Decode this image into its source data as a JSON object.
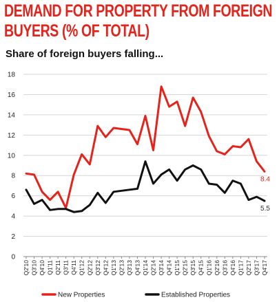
{
  "header": {
    "title_line1": "DEMAND FOR PROPERTY FROM FOREIGN",
    "title_line2": "BUYERS (% OF TOTAL)",
    "subtitle": "Share of foreign buyers falling..."
  },
  "chart_data": {
    "type": "line",
    "title": "DEMAND FOR PROPERTY FROM FOREIGN BUYERS (% OF TOTAL)",
    "subtitle": "Share of foreign buyers falling...",
    "xlabel": "",
    "ylabel": "",
    "ylim": [
      0,
      18
    ],
    "yticks": [
      0,
      2,
      4,
      6,
      8,
      10,
      12,
      14,
      16,
      18
    ],
    "grid": "horizontal",
    "legend_position": "bottom",
    "categories": [
      "Q2'10",
      "Q3'10",
      "Q4'10",
      "Q1'11",
      "Q2'11",
      "Q3'11",
      "Q4'11",
      "Q1'12",
      "Q2'12",
      "Q3'12",
      "Q4'12",
      "Q1'13",
      "Q2'13",
      "Q3'13",
      "Q4'13",
      "Q1'14",
      "Q2'14",
      "Q3'14",
      "Q4'14",
      "Q1'15",
      "Q2'15",
      "Q3'15",
      "Q4'15",
      "Q1'16",
      "Q2'16",
      "Q3'16",
      "Q4'16",
      "Q1'17",
      "Q2'17",
      "Q3'17",
      "Q4'17"
    ],
    "series": [
      {
        "name": "New Properties",
        "color": "#e5231b",
        "values": [
          8.2,
          8.1,
          6.4,
          5.6,
          6.4,
          4.8,
          8.1,
          10.1,
          9.1,
          12.9,
          11.8,
          12.7,
          12.6,
          12.5,
          11.1,
          13.9,
          10.5,
          16.8,
          14.8,
          15.3,
          12.9,
          15.7,
          14.3,
          11.9,
          10.4,
          10.1,
          10.9,
          10.8,
          11.6,
          9.4,
          8.4
        ],
        "end_label": "8.4"
      },
      {
        "name": "Established Properties",
        "color": "#111111",
        "values": [
          6.6,
          5.2,
          5.6,
          4.6,
          4.7,
          4.7,
          4.4,
          4.5,
          5.1,
          6.3,
          5.3,
          6.4,
          6.5,
          6.6,
          6.7,
          9.4,
          7.2,
          8.1,
          8.6,
          7.5,
          8.6,
          9.0,
          8.6,
          7.2,
          7.1,
          6.3,
          7.5,
          7.2,
          5.6,
          5.9,
          5.5
        ],
        "end_label": "5.5"
      }
    ]
  }
}
